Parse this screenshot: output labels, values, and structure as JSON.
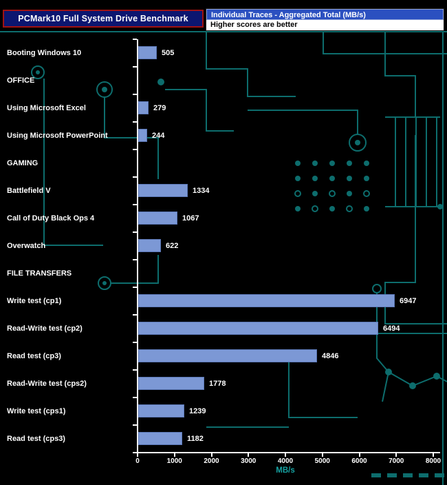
{
  "header": {
    "title": "PCMark10 Full System Drive Benchmark"
  },
  "legend": {
    "line1": "Individual Traces - Aggregated Total (MB/s)",
    "line2": "Higher scores are better"
  },
  "colors": {
    "background": "#000000",
    "circuit_teal": "#0d6d6d",
    "bar_fill": "#7c98d5",
    "bar_border": "#5a76b5",
    "title_box_bg": "#0c1670",
    "title_box_border": "#a01212",
    "legend_blue_bg": "#2b50c0",
    "legend_white_bg": "#ffffff",
    "axis": "#ffffff",
    "axis_title_teal": "#16a2a2"
  },
  "chart_data": {
    "type": "bar",
    "orientation": "horizontal",
    "title": "PCMark10 Full System Drive Benchmark",
    "subtitle": "Individual Traces - Aggregated Total (MB/s)",
    "note": "Higher scores are better",
    "xlabel": "MB/s",
    "xlim": [
      0,
      8000
    ],
    "xticks": [
      0,
      1000,
      2000,
      3000,
      4000,
      5000,
      6000,
      7000,
      8000
    ],
    "grid": false,
    "legend_position": "top-right",
    "rows": [
      {
        "label": "Booting Windows 10",
        "value": 505
      },
      {
        "label": "OFFICE",
        "section": true
      },
      {
        "label": "Using Microsoft Excel",
        "value": 279
      },
      {
        "label": "Using Microsoft PowerPoint",
        "value": 244
      },
      {
        "label": "GAMING",
        "section": true
      },
      {
        "label": "Battlefield V",
        "value": 1334
      },
      {
        "label": "Call of Duty Black Ops 4",
        "value": 1067
      },
      {
        "label": "Overwatch",
        "value": 622
      },
      {
        "label": "FILE TRANSFERS",
        "section": true
      },
      {
        "label": "Write test (cp1)",
        "value": 6947
      },
      {
        "label": "Read-Write test (cp2)",
        "value": 6494
      },
      {
        "label": "Read test (cp3)",
        "value": 4846
      },
      {
        "label": "Read-Write test (cps2)",
        "value": 1778
      },
      {
        "label": "Write test (cps1)",
        "value": 1239
      },
      {
        "label": "Read test (cps3)",
        "value": 1182
      }
    ]
  }
}
